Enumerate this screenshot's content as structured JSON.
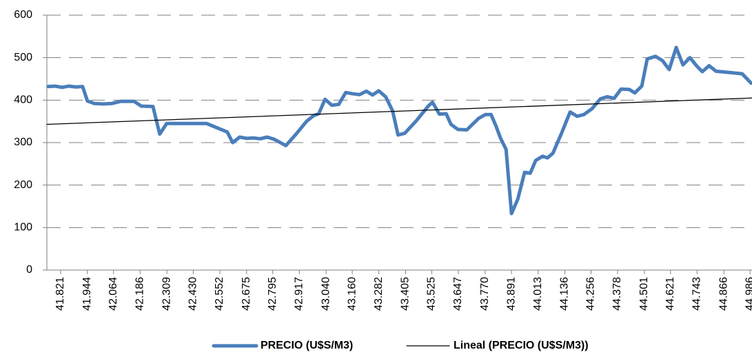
{
  "chart_data": {
    "type": "line",
    "xlim": [
      41758,
      44995
    ],
    "ylim": [
      0,
      600
    ],
    "yticks": [
      0,
      100,
      200,
      300,
      400,
      500,
      600
    ],
    "xticks": [
      {
        "value": 41821,
        "label": "41.821"
      },
      {
        "value": 41944,
        "label": "41.944"
      },
      {
        "value": 42064,
        "label": "42.064"
      },
      {
        "value": 42186,
        "label": "42.186"
      },
      {
        "value": 42309,
        "label": "42.309"
      },
      {
        "value": 42430,
        "label": "42.430"
      },
      {
        "value": 42552,
        "label": "42.552"
      },
      {
        "value": 42675,
        "label": "42.675"
      },
      {
        "value": 42795,
        "label": "42.795"
      },
      {
        "value": 42917,
        "label": "42.917"
      },
      {
        "value": 43040,
        "label": "43.040"
      },
      {
        "value": 43160,
        "label": "43.160"
      },
      {
        "value": 43282,
        "label": "43.282"
      },
      {
        "value": 43405,
        "label": "43.405"
      },
      {
        "value": 43525,
        "label": "43.525"
      },
      {
        "value": 43647,
        "label": "43.647"
      },
      {
        "value": 43770,
        "label": "43.770"
      },
      {
        "value": 43891,
        "label": "43.891"
      },
      {
        "value": 44013,
        "label": "44.013"
      },
      {
        "value": 44136,
        "label": "44.136"
      },
      {
        "value": 44256,
        "label": "44.256"
      },
      {
        "value": 44378,
        "label": "44.378"
      },
      {
        "value": 44501,
        "label": "44.501"
      },
      {
        "value": 44621,
        "label": "44.621"
      },
      {
        "value": 44743,
        "label": "44.743"
      },
      {
        "value": 44866,
        "label": "44.866"
      },
      {
        "value": 44986,
        "label": "44.986"
      }
    ],
    "grid": true,
    "legend": "bottom",
    "series": [
      {
        "name": "PRECIO (U$S/M3)",
        "color": "#4a7ebb",
        "width": 5,
        "x": [
          41764,
          41796,
          41828,
          41859,
          41891,
          41922,
          41944,
          41976,
          42017,
          42055,
          42096,
          42159,
          42191,
          42245,
          42276,
          42308,
          42365,
          42491,
          42586,
          42611,
          42643,
          42675,
          42706,
          42738,
          42769,
          42801,
          42855,
          42902,
          42950,
          42981,
          43006,
          43035,
          43066,
          43098,
          43130,
          43161,
          43193,
          43225,
          43253,
          43281,
          43313,
          43345,
          43370,
          43401,
          43455,
          43509,
          43528,
          43560,
          43591,
          43613,
          43645,
          43686,
          43740,
          43771,
          43797,
          43819,
          43841,
          43866,
          43891,
          43920,
          43951,
          43977,
          44002,
          44034,
          44056,
          44081,
          44119,
          44160,
          44192,
          44223,
          44261,
          44299,
          44331,
          44362,
          44394,
          44432,
          44457,
          44489,
          44514,
          44552,
          44584,
          44615,
          44647,
          44678,
          44710,
          44742,
          44767,
          44798,
          44830,
          44893,
          44950,
          44991
        ],
        "values": [
          432,
          433,
          430,
          433,
          431,
          432,
          398,
          392,
          391,
          392,
          397,
          397,
          386,
          385,
          320,
          345,
          345,
          345,
          325,
          300,
          313,
          310,
          311,
          309,
          313,
          308,
          293,
          320,
          350,
          363,
          368,
          402,
          388,
          390,
          418,
          415,
          413,
          421,
          412,
          422,
          408,
          375,
          318,
          322,
          352,
          386,
          395,
          367,
          368,
          343,
          331,
          330,
          357,
          366,
          366,
          340,
          310,
          284,
          133,
          167,
          230,
          228,
          258,
          268,
          264,
          275,
          320,
          372,
          362,
          366,
          380,
          403,
          408,
          404,
          426,
          425,
          417,
          433,
          497,
          503,
          493,
          472,
          524,
          483,
          500,
          480,
          467,
          481,
          468,
          465,
          462,
          440
        ]
      },
      {
        "name": "Lineal (PRECIO (U$S/M3))",
        "color": "#000000",
        "width": 1.3,
        "x": [
          41758,
          44995
        ],
        "values": [
          343,
          405
        ]
      }
    ]
  }
}
